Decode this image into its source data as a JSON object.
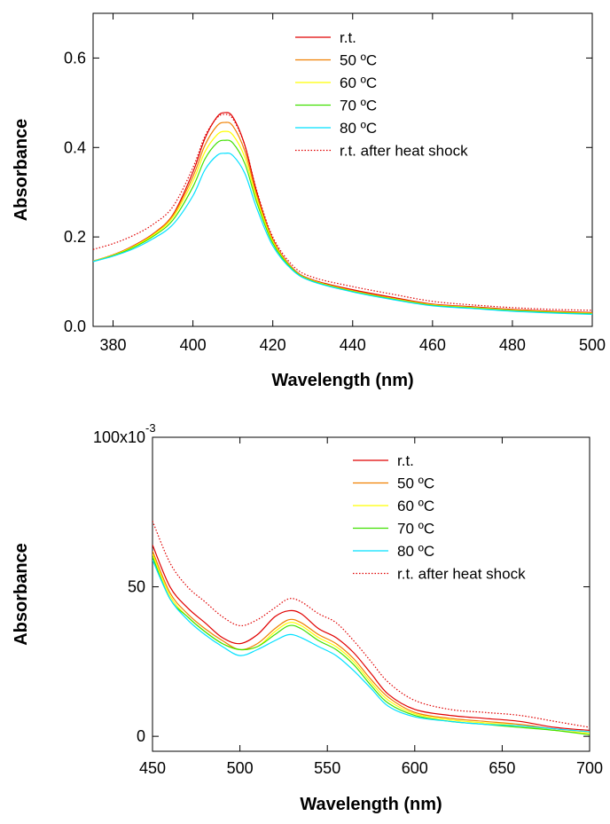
{
  "chart_data": [
    {
      "type": "line",
      "xlabel": "Wavelength (nm)",
      "ylabel": "Absorbance",
      "xlim": [
        375,
        500
      ],
      "ylim": [
        0.0,
        0.7
      ],
      "xticks": [
        380,
        400,
        420,
        440,
        460,
        480,
        500
      ],
      "yticks": [
        0.0,
        0.2,
        0.4,
        0.6
      ],
      "ytick_labels": [
        "0.0",
        "0.2",
        "0.4",
        "0.6"
      ],
      "legend_placement": "top-right",
      "x": [
        375,
        380,
        385,
        390,
        395,
        400,
        403,
        406,
        408,
        410,
        413,
        416,
        420,
        425,
        430,
        440,
        450,
        460,
        470,
        480,
        490,
        500
      ],
      "series": [
        {
          "name": "r.t.",
          "color": "#e00000",
          "style": "solid",
          "values": [
            0.146,
            0.16,
            0.18,
            0.207,
            0.25,
            0.345,
            0.42,
            0.468,
            0.478,
            0.468,
            0.405,
            0.3,
            0.195,
            0.13,
            0.104,
            0.082,
            0.065,
            0.05,
            0.044,
            0.038,
            0.034,
            0.031
          ]
        },
        {
          "name": "50 ºC",
          "color": "#f08000",
          "style": "solid",
          "values": [
            0.146,
            0.16,
            0.179,
            0.206,
            0.248,
            0.335,
            0.405,
            0.448,
            0.456,
            0.448,
            0.392,
            0.293,
            0.193,
            0.129,
            0.103,
            0.08,
            0.063,
            0.049,
            0.043,
            0.037,
            0.033,
            0.03
          ]
        },
        {
          "name": "60 ºC",
          "color": "#ffff00",
          "style": "solid",
          "values": [
            0.146,
            0.159,
            0.178,
            0.204,
            0.244,
            0.325,
            0.39,
            0.428,
            0.436,
            0.428,
            0.378,
            0.285,
            0.19,
            0.128,
            0.102,
            0.079,
            0.062,
            0.048,
            0.042,
            0.036,
            0.032,
            0.029
          ]
        },
        {
          "name": "70 ºC",
          "color": "#40e000",
          "style": "solid",
          "values": [
            0.145,
            0.158,
            0.176,
            0.201,
            0.238,
            0.312,
            0.374,
            0.41,
            0.416,
            0.41,
            0.364,
            0.277,
            0.186,
            0.127,
            0.101,
            0.078,
            0.061,
            0.047,
            0.041,
            0.035,
            0.031,
            0.028
          ]
        },
        {
          "name": "80 ºC",
          "color": "#00e0ff",
          "style": "solid",
          "values": [
            0.145,
            0.157,
            0.173,
            0.196,
            0.228,
            0.292,
            0.35,
            0.382,
            0.387,
            0.382,
            0.342,
            0.264,
            0.18,
            0.125,
            0.1,
            0.077,
            0.06,
            0.046,
            0.04,
            0.034,
            0.03,
            0.027
          ]
        },
        {
          "name": "r.t. after heat shock",
          "color": "#e00000",
          "style": "dotted",
          "values": [
            0.172,
            0.185,
            0.203,
            0.228,
            0.268,
            0.355,
            0.425,
            0.466,
            0.474,
            0.464,
            0.405,
            0.303,
            0.2,
            0.136,
            0.11,
            0.089,
            0.072,
            0.056,
            0.048,
            0.042,
            0.038,
            0.036
          ]
        }
      ]
    },
    {
      "type": "line",
      "xlabel": "Wavelength (nm)",
      "ylabel": "Absorbance",
      "xlim": [
        450,
        700
      ],
      "ylim": [
        -5,
        100
      ],
      "y_unit_label": "100x10",
      "y_unit_exponent": "-3",
      "xticks": [
        450,
        500,
        550,
        600,
        650,
        700
      ],
      "yticks": [
        0,
        50
      ],
      "ytick_labels": [
        "0",
        "50"
      ],
      "legend_placement": "top-right",
      "x": [
        450,
        460,
        470,
        480,
        490,
        500,
        510,
        520,
        528,
        535,
        545,
        555,
        565,
        575,
        585,
        600,
        620,
        640,
        660,
        680,
        700
      ],
      "series": [
        {
          "name": "r.t.",
          "color": "#e00000",
          "style": "solid",
          "values": [
            64,
            50,
            43,
            38,
            33,
            31,
            34,
            40,
            42,
            41,
            36,
            33,
            28,
            21,
            14,
            9,
            7,
            6,
            5,
            3,
            2
          ]
        },
        {
          "name": "50 ºC",
          "color": "#f08000",
          "style": "solid",
          "values": [
            62,
            48,
            41,
            36,
            32,
            29,
            31,
            36,
            39,
            38,
            34,
            31,
            26,
            19,
            13,
            8,
            6,
            5,
            4,
            2.5,
            1.5
          ]
        },
        {
          "name": "60 ºC",
          "color": "#ffff00",
          "style": "solid",
          "values": [
            61,
            47,
            40,
            35,
            31,
            29,
            30,
            35,
            38,
            37,
            33,
            30,
            25,
            18,
            12,
            7.5,
            5.5,
            4.5,
            3.5,
            2,
            1
          ]
        },
        {
          "name": "70 ºC",
          "color": "#40e000",
          "style": "solid",
          "values": [
            60,
            46,
            40,
            35,
            31,
            29,
            30,
            34,
            37,
            36,
            32,
            29,
            24,
            17,
            11,
            7,
            5,
            4,
            3,
            2,
            0.5
          ]
        },
        {
          "name": "80 ºC",
          "color": "#00e0ff",
          "style": "solid",
          "values": [
            59,
            46,
            39,
            34,
            30,
            27,
            29,
            32,
            34,
            33,
            30,
            27,
            22,
            16,
            10,
            6.5,
            5,
            4,
            3.5,
            2.5,
            1.5
          ]
        },
        {
          "name": "r.t. after heat shock",
          "color": "#e00000",
          "style": "dotted",
          "values": [
            72,
            58,
            50,
            45,
            40,
            37,
            39,
            43,
            46,
            45,
            41,
            38,
            32,
            25,
            18,
            12,
            9,
            8,
            7,
            5,
            3
          ]
        }
      ]
    }
  ]
}
